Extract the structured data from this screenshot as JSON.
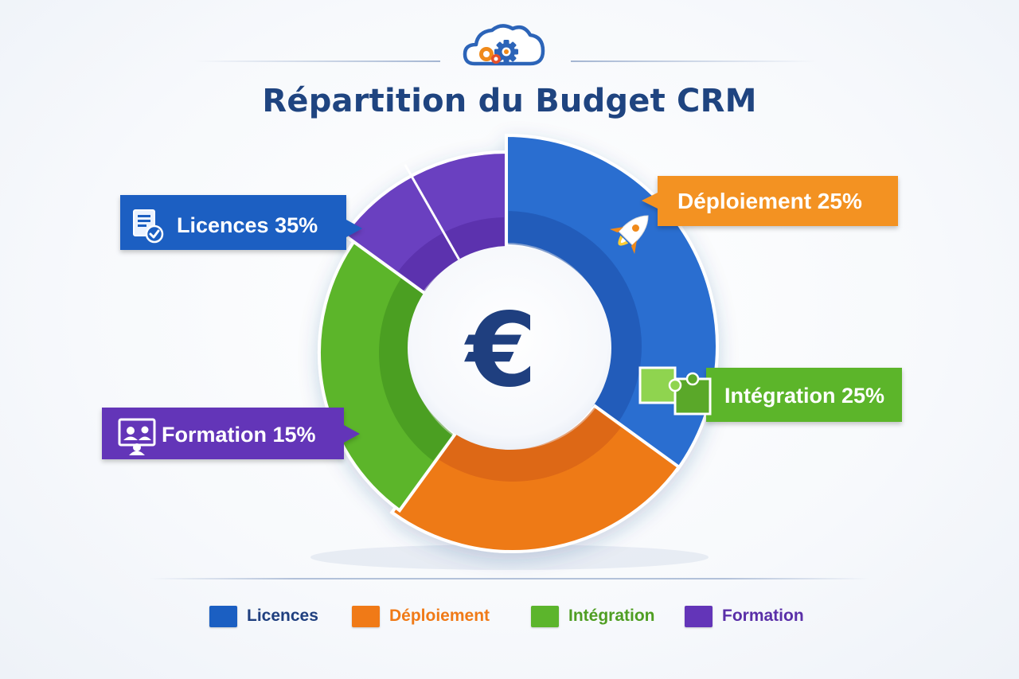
{
  "title": "Répartition du Budget CRM",
  "logo_icon": "cloud-gear-icon",
  "center_icon": "euro-icon",
  "center_symbol": "€",
  "chart_data": {
    "type": "pie",
    "variant": "donut",
    "title": "Répartition du Budget CRM",
    "categories": [
      "Licences",
      "Déploiement",
      "Intégration",
      "Formation"
    ],
    "values": [
      35,
      25,
      25,
      15
    ],
    "unit": "%",
    "labels": [
      "Licences 35%",
      "Déploiement 25%",
      "Intégration 25%",
      "Formation 15%"
    ],
    "colors": [
      "#2a6ed0",
      "#ee7a18",
      "#5cb52c",
      "#6a3fc0"
    ],
    "legend": {
      "position": "bottom",
      "entries": [
        {
          "label": "Licences",
          "color": "#1b5fc2"
        },
        {
          "label": "Déploiement",
          "color": "#f07a17"
        },
        {
          "label": "Intégration",
          "color": "#5cb52c"
        },
        {
          "label": "Formation",
          "color": "#6335b8"
        }
      ]
    },
    "callout_icons": [
      "document-check-icon",
      "rocket-icon",
      "puzzle-icon",
      "presentation-icon"
    ]
  }
}
